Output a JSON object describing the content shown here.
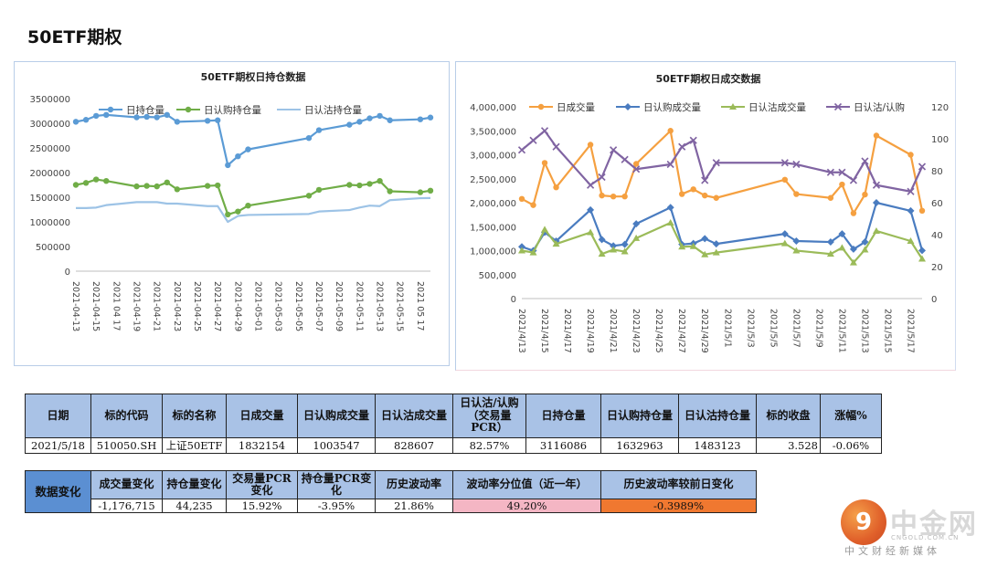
{
  "page": {
    "title": "50ETF期权"
  },
  "chart_data": [
    {
      "type": "line",
      "title": "50ETF期权日持仓数据",
      "x": [
        "2021-04-13",
        "2021-04-14",
        "2021-04-15",
        "2021-04-16",
        "2021-04-19",
        "2021-04-20",
        "2021-04-21",
        "2021-04-22",
        "2021-04-23",
        "2021-04-26",
        "2021-04-27",
        "2021-04-28",
        "2021-04-29",
        "2021-04-30",
        "2021-05-06",
        "2021-05-07",
        "2021-05-10",
        "2021-05-11",
        "2021-05-12",
        "2021-05-13",
        "2021-05-14",
        "2021-05-17",
        "2021-05-18"
      ],
      "tick_labels": [
        "2021-04-13",
        "2021-04-15",
        "2021 04 17",
        "2021-04-19",
        "2021-04-21",
        "2021-04-23",
        "2021-04-25",
        "2021-04-27",
        "2021-04-29",
        "2021-05-01",
        "2021-05-03",
        "2021-05-05",
        "2021-05-07",
        "2021-05-09",
        "2021-05-11",
        "2021-05-13",
        "2021-05-15",
        "2021 05 17"
      ],
      "tick_days": [
        0,
        2,
        4,
        6,
        8,
        10,
        12,
        14,
        16,
        18,
        20,
        22,
        24,
        26,
        28,
        30,
        32,
        34
      ],
      "x_days": [
        0,
        1,
        2,
        3,
        6,
        7,
        8,
        9,
        10,
        13,
        14,
        15,
        16,
        17,
        23,
        24,
        27,
        28,
        29,
        30,
        31,
        34,
        35
      ],
      "ylim": [
        0,
        3500000
      ],
      "yticks": [
        "0",
        "500000",
        "1000000",
        "1500000",
        "2000000",
        "2500000",
        "3000000",
        "3500000"
      ],
      "ytick_values": [
        0,
        500000,
        1000000,
        1500000,
        2000000,
        2500000,
        3000000,
        3500000
      ],
      "legend_position": "top",
      "series": [
        {
          "name": "日持仓量",
          "color": "#5b9bd5",
          "marker": true,
          "values": [
            3030000,
            3070000,
            3150000,
            3170000,
            3120000,
            3130000,
            3120000,
            3170000,
            3030000,
            3050000,
            3060000,
            2150000,
            2330000,
            2470000,
            2700000,
            2860000,
            2970000,
            3030000,
            3100000,
            3150000,
            3060000,
            3080000,
            3116086
          ]
        },
        {
          "name": "日认购持仓量",
          "color": "#70ad47",
          "marker": true,
          "values": [
            1750000,
            1790000,
            1860000,
            1830000,
            1720000,
            1730000,
            1720000,
            1800000,
            1660000,
            1730000,
            1740000,
            1150000,
            1210000,
            1330000,
            1530000,
            1650000,
            1750000,
            1740000,
            1770000,
            1830000,
            1620000,
            1600000,
            1632963
          ]
        },
        {
          "name": "日认沽持仓量",
          "color": "#9dc3e6",
          "marker": false,
          "values": [
            1280000,
            1280000,
            1290000,
            1340000,
            1400000,
            1400000,
            1400000,
            1370000,
            1370000,
            1320000,
            1320000,
            1000000,
            1120000,
            1140000,
            1160000,
            1210000,
            1240000,
            1290000,
            1330000,
            1320000,
            1440000,
            1480000,
            1483123
          ]
        }
      ]
    },
    {
      "type": "line",
      "title": "50ETF期权日成交数据",
      "x": [
        "2021-04-13",
        "2021-04-14",
        "2021-04-15",
        "2021-04-16",
        "2021-04-19",
        "2021-04-20",
        "2021-04-21",
        "2021-04-22",
        "2021-04-23",
        "2021-04-26",
        "2021-04-27",
        "2021-04-28",
        "2021-04-29",
        "2021-04-30",
        "2021-05-06",
        "2021-05-07",
        "2021-05-10",
        "2021-05-11",
        "2021-05-12",
        "2021-05-13",
        "2021-05-14",
        "2021-05-17",
        "2021-05-18"
      ],
      "tick_labels": [
        "2021/4/13",
        "2021/4/15",
        "2021/4/17",
        "2021/4/19",
        "2021/4/21",
        "2021/4/23",
        "2021/4/25",
        "2021/4/27",
        "2021/4/29",
        "2021/5/1",
        "2021/5/3",
        "2021/5/5",
        "2021/5/7",
        "2021/5/9",
        "2021/5/11",
        "2021/5/13",
        "2021/5/15",
        "2021/5/17"
      ],
      "tick_days": [
        0,
        2,
        4,
        6,
        8,
        10,
        12,
        14,
        16,
        18,
        20,
        22,
        24,
        26,
        28,
        30,
        32,
        34
      ],
      "x_days": [
        0,
        1,
        2,
        3,
        6,
        7,
        8,
        9,
        10,
        13,
        14,
        15,
        16,
        17,
        23,
        24,
        27,
        28,
        29,
        30,
        31,
        34,
        35
      ],
      "ylim": [
        0,
        4000000
      ],
      "yticks": [
        "0",
        "500,000",
        "1,000,000",
        "1,500,000",
        "2,000,000",
        "2,500,000",
        "3,000,000",
        "3,500,000",
        "4,000,000"
      ],
      "ytick_values": [
        0,
        500000,
        1000000,
        1500000,
        2000000,
        2500000,
        3000000,
        3500000,
        4000000
      ],
      "y2lim": [
        0,
        120
      ],
      "y2ticks": [
        "0",
        "20",
        "40",
        "60",
        "80",
        "100",
        "120"
      ],
      "y2tick_values": [
        0,
        20,
        40,
        60,
        80,
        100,
        120
      ],
      "legend_position": "top",
      "series": [
        {
          "name": "日成交量",
          "color": "#f5a040",
          "marker": "circle",
          "axis": "left",
          "values": [
            2080000,
            1950000,
            2830000,
            2320000,
            3210000,
            2150000,
            2130000,
            2130000,
            2810000,
            3500000,
            2180000,
            2280000,
            2150000,
            2100000,
            2480000,
            2180000,
            2100000,
            2380000,
            1780000,
            2170000,
            3400000,
            3000000,
            1832154
          ]
        },
        {
          "name": "日认购成交量",
          "color": "#4a7cc0",
          "marker": "diamond",
          "axis": "left",
          "values": [
            1080000,
            1000000,
            1380000,
            1200000,
            1850000,
            1230000,
            1100000,
            1130000,
            1560000,
            1900000,
            1130000,
            1150000,
            1250000,
            1140000,
            1350000,
            1200000,
            1180000,
            1350000,
            1030000,
            1180000,
            2000000,
            1830000,
            1003547
          ]
        },
        {
          "name": "日认沽成交量",
          "color": "#9bbb59",
          "marker": "triangle",
          "axis": "left",
          "values": [
            1000000,
            960000,
            1440000,
            1140000,
            1380000,
            930000,
            1020000,
            980000,
            1260000,
            1580000,
            1080000,
            1090000,
            920000,
            960000,
            1150000,
            1000000,
            930000,
            1060000,
            750000,
            1020000,
            1410000,
            1200000,
            828607
          ]
        },
        {
          "name": "日认沽/认购",
          "color": "#8064a2",
          "marker": "x",
          "axis": "right",
          "values": [
            93,
            99,
            105,
            95,
            71,
            76,
            93,
            87,
            81,
            84,
            95,
            99,
            74,
            85,
            85,
            84,
            79,
            79,
            74,
            86,
            71,
            67,
            82.57
          ]
        }
      ]
    }
  ],
  "table1": {
    "headers": [
      "日期",
      "标的代码",
      "标的名称",
      "日成交量",
      "日认购成交量",
      "日认沽成交量",
      "日认沽/认购（交易量PCR）",
      "日持仓量",
      "日认购持仓量",
      "日认沽持仓量",
      "标的收盘",
      "涨幅%"
    ],
    "row": [
      "2021/5/18",
      "510050.SH",
      "上证50ETF",
      "1832154",
      "1003547",
      "828607",
      "82.57%",
      "3116086",
      "1632963",
      "1483123",
      "3.528",
      "-0.06%"
    ]
  },
  "table2": {
    "side_label": "数据变化",
    "headers": [
      "成交量变化",
      "持仓量变化",
      "交易量PCR变化",
      "持仓量PCR变化",
      "历史波动率",
      "波动率分位值（近一年）",
      "历史波动率较前日变化"
    ],
    "row": [
      "-1,176,715",
      "44,235",
      "15.92%",
      "-3.95%",
      "21.86%",
      "49.20%",
      "-0.3989%"
    ],
    "pink_color": "#f4b6c4",
    "orange_color": "#f07830"
  },
  "watermark": {
    "name": "中金网",
    "url": "CNGOLD.COM.CN",
    "tagline": "中文财经新媒体"
  }
}
